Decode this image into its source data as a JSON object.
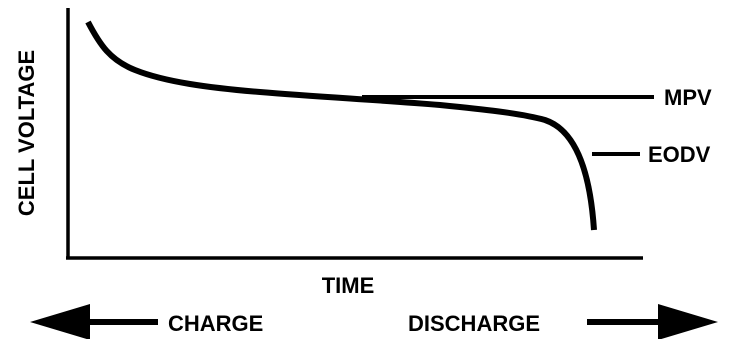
{
  "y_axis_label": "CELL VOLTAGE",
  "x_axis_label": "TIME",
  "mpv_label": "MPV",
  "eodv_label": "EODV",
  "charge_label": "CHARGE",
  "discharge_label": "DISCHARGE",
  "colors": {
    "ink": "#000000",
    "background": "#ffffff"
  }
}
